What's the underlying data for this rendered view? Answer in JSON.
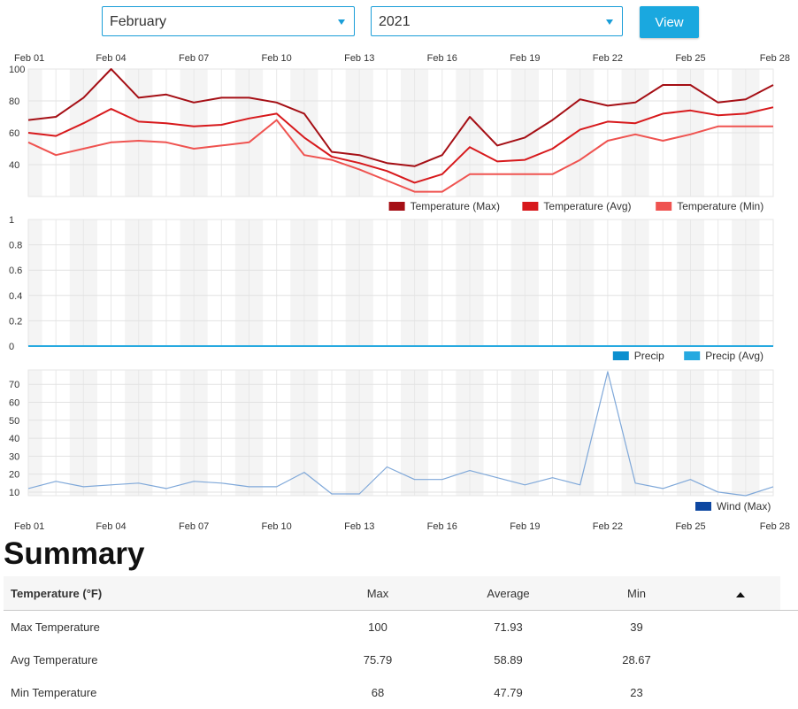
{
  "controls": {
    "month": "February",
    "year": "2021",
    "view_label": "View"
  },
  "chart_data": [
    {
      "type": "line",
      "x": [
        "Feb 01",
        "Feb 02",
        "Feb 03",
        "Feb 04",
        "Feb 05",
        "Feb 06",
        "Feb 07",
        "Feb 08",
        "Feb 09",
        "Feb 10",
        "Feb 11",
        "Feb 12",
        "Feb 13",
        "Feb 14",
        "Feb 15",
        "Feb 16",
        "Feb 17",
        "Feb 18",
        "Feb 19",
        "Feb 20",
        "Feb 21",
        "Feb 22",
        "Feb 23",
        "Feb 24",
        "Feb 25",
        "Feb 26",
        "Feb 27",
        "Feb 28"
      ],
      "x_ticks": [
        "Feb 01",
        "Feb 04",
        "Feb 07",
        "Feb 10",
        "Feb 13",
        "Feb 16",
        "Feb 19",
        "Feb 22",
        "Feb 25",
        "Feb 28"
      ],
      "ylim": [
        20,
        100
      ],
      "y_ticks": [
        40,
        60,
        80,
        100
      ],
      "legend_position": "bottom-right",
      "series": [
        {
          "name": "Temperature (Max)",
          "color": "#a50f15",
          "values": [
            68,
            70,
            82,
            100,
            82,
            84,
            79,
            82,
            82,
            79,
            72,
            48,
            46,
            41,
            39,
            46,
            70,
            52,
            57,
            68,
            81,
            77,
            79,
            90,
            90,
            79,
            81,
            90
          ]
        },
        {
          "name": "Temperature (Avg)",
          "color": "#d7191c",
          "values": [
            60,
            58,
            66,
            75,
            67,
            66,
            64,
            65,
            69,
            72,
            57,
            45,
            41,
            36,
            28.67,
            34,
            51,
            42,
            43,
            50,
            62,
            67,
            66,
            72,
            74,
            71,
            72,
            76
          ]
        },
        {
          "name": "Temperature (Min)",
          "color": "#ef5350",
          "values": [
            54,
            46,
            50,
            54,
            55,
            54,
            50,
            52,
            54,
            68,
            46,
            43,
            37,
            30,
            23,
            23,
            34,
            34,
            34,
            34,
            43,
            55,
            59,
            55,
            59,
            64,
            64,
            64
          ]
        }
      ]
    },
    {
      "type": "line",
      "x": [
        "Feb 01",
        "Feb 02",
        "Feb 03",
        "Feb 04",
        "Feb 05",
        "Feb 06",
        "Feb 07",
        "Feb 08",
        "Feb 09",
        "Feb 10",
        "Feb 11",
        "Feb 12",
        "Feb 13",
        "Feb 14",
        "Feb 15",
        "Feb 16",
        "Feb 17",
        "Feb 18",
        "Feb 19",
        "Feb 20",
        "Feb 21",
        "Feb 22",
        "Feb 23",
        "Feb 24",
        "Feb 25",
        "Feb 26",
        "Feb 27",
        "Feb 28"
      ],
      "ylim": [
        0,
        1
      ],
      "y_ticks": [
        "0",
        "0.2",
        "0.4",
        "0.6",
        "0.8",
        "1"
      ],
      "legend_position": "bottom-right",
      "series": [
        {
          "name": "Precip",
          "color": "#0b8fcf",
          "values": [
            0,
            0,
            0,
            0,
            0,
            0,
            0,
            0,
            0,
            0,
            0,
            0,
            0,
            0,
            0,
            0,
            0,
            0,
            0,
            0,
            0,
            0,
            0,
            0,
            0,
            0,
            0,
            0
          ]
        },
        {
          "name": "Precip (Avg)",
          "color": "#26a9e0",
          "values": [
            0,
            0,
            0,
            0,
            0,
            0,
            0,
            0,
            0,
            0,
            0,
            0,
            0,
            0,
            0,
            0,
            0,
            0,
            0,
            0,
            0,
            0,
            0,
            0,
            0,
            0,
            0,
            0
          ]
        }
      ]
    },
    {
      "type": "line",
      "x": [
        "Feb 01",
        "Feb 02",
        "Feb 03",
        "Feb 04",
        "Feb 05",
        "Feb 06",
        "Feb 07",
        "Feb 08",
        "Feb 09",
        "Feb 10",
        "Feb 11",
        "Feb 12",
        "Feb 13",
        "Feb 14",
        "Feb 15",
        "Feb 16",
        "Feb 17",
        "Feb 18",
        "Feb 19",
        "Feb 20",
        "Feb 21",
        "Feb 22",
        "Feb 23",
        "Feb 24",
        "Feb 25",
        "Feb 26",
        "Feb 27",
        "Feb 28"
      ],
      "x_ticks": [
        "Feb 01",
        "Feb 04",
        "Feb 07",
        "Feb 10",
        "Feb 13",
        "Feb 16",
        "Feb 19",
        "Feb 22",
        "Feb 25",
        "Feb 28"
      ],
      "ylim": [
        8,
        78
      ],
      "y_ticks": [
        10,
        20,
        30,
        40,
        50,
        60,
        70
      ],
      "legend_position": "bottom-right",
      "series": [
        {
          "name": "Wind (Max)",
          "color": "#7fa8d9",
          "legend_color": "#0d47a1",
          "values": [
            12,
            16,
            13,
            14,
            15,
            12,
            16,
            15,
            13,
            13,
            21,
            9,
            9,
            24,
            17,
            17,
            22,
            18,
            14,
            18,
            14,
            77,
            15,
            12,
            17,
            10,
            8,
            13
          ]
        }
      ]
    }
  ],
  "summary": {
    "title": "Summary",
    "columns": [
      "Temperature (°F)",
      "Max",
      "Average",
      "Min"
    ],
    "rows": [
      [
        "Max Temperature",
        "100",
        "71.93",
        "39"
      ],
      [
        "Avg Temperature",
        "75.79",
        "58.89",
        "28.67"
      ],
      [
        "Min Temperature",
        "68",
        "47.79",
        "23"
      ]
    ]
  }
}
